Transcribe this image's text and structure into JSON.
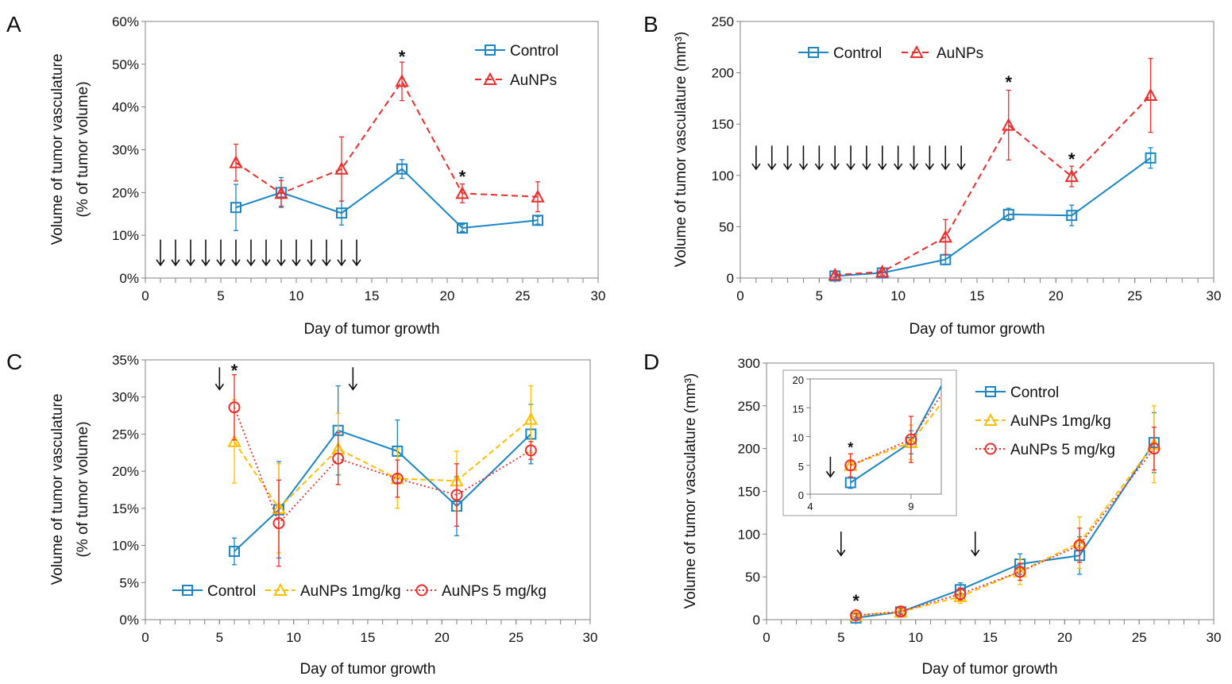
{
  "colors": {
    "control": "#1b86c3",
    "aunps": "#ee2b2b",
    "aunps_1mg": "#ffbe00",
    "aunps_5mg": "#ee2b2b",
    "axis": "#808080",
    "text": "#111111"
  },
  "chart_data": [
    {
      "panel": "A",
      "type": "line",
      "title": "",
      "xlabel": "Day of tumor growth",
      "ylabel": "Volume of tumor vasculature",
      "ylabel2": "(% of tumor volume)",
      "xlim": [
        0,
        30
      ],
      "ylim": [
        0,
        60
      ],
      "x_ticks": [
        0,
        5,
        10,
        15,
        20,
        25,
        30
      ],
      "y_ticks": [
        0,
        10,
        20,
        30,
        40,
        50,
        60
      ],
      "y_tick_labels": [
        "0%",
        "10%",
        "20%",
        "30%",
        "40%",
        "50%",
        "60%"
      ],
      "legend_position": "top-right",
      "series": [
        {
          "name": "Control",
          "style": "control",
          "marker": "square",
          "dash": false,
          "x": [
            6,
            9,
            13,
            17,
            21,
            26
          ],
          "y": [
            16.5,
            20,
            15.2,
            25.5,
            11.7,
            13.5
          ],
          "err": [
            5.4,
            3.5,
            2.8,
            2.2,
            0.8,
            0.9
          ]
        },
        {
          "name": "AuNPs",
          "style": "aunps",
          "marker": "triangle",
          "dash": true,
          "x": [
            6,
            9,
            13,
            17,
            21,
            26
          ],
          "y": [
            27,
            19.8,
            25.5,
            46,
            19.8,
            19
          ],
          "err": [
            4.3,
            3,
            7.5,
            4.5,
            2.2,
            3.5
          ]
        }
      ],
      "annotations": [
        {
          "text": "*",
          "x": 17,
          "y": 52
        },
        {
          "text": "*",
          "x": 21,
          "y": 24
        }
      ],
      "arrows": {
        "x": [
          1,
          2,
          3,
          4,
          5,
          6,
          7,
          8,
          9,
          10,
          11,
          12,
          13,
          14
        ],
        "y_top": 9,
        "y_bottom": 3
      }
    },
    {
      "panel": "B",
      "type": "line",
      "title": "",
      "xlabel": "Day of tumor growth",
      "ylabel": "Volume of tumor vasculature (mm³)",
      "xlim": [
        0,
        30
      ],
      "ylim": [
        0,
        250
      ],
      "x_ticks": [
        0,
        5,
        10,
        15,
        20,
        25,
        30
      ],
      "y_ticks": [
        0,
        50,
        100,
        150,
        200,
        250
      ],
      "y_tick_labels": [
        "0",
        "50",
        "100",
        "150",
        "200",
        "250"
      ],
      "legend_position": "top-left",
      "series": [
        {
          "name": "Control",
          "style": "control",
          "marker": "square",
          "dash": false,
          "x": [
            6,
            9,
            13,
            17,
            21,
            26
          ],
          "y": [
            2,
            5,
            18,
            62,
            61,
            117
          ],
          "err": [
            2,
            2,
            5,
            6,
            10,
            10
          ]
        },
        {
          "name": "AuNPs",
          "style": "aunps",
          "marker": "triangle",
          "dash": true,
          "x": [
            6,
            9,
            13,
            17,
            21,
            26
          ],
          "y": [
            3,
            6,
            40,
            149,
            99,
            178
          ],
          "err": [
            2,
            3,
            17,
            34,
            10,
            36
          ]
        }
      ],
      "annotations": [
        {
          "text": "*",
          "x": 17,
          "y": 192
        },
        {
          "text": "*",
          "x": 21,
          "y": 117
        }
      ],
      "arrows": {
        "x": [
          1,
          2,
          3,
          4,
          5,
          6,
          7,
          8,
          9,
          10,
          11,
          12,
          13,
          14
        ],
        "y_top": 129,
        "y_bottom": 106
      }
    },
    {
      "panel": "C",
      "type": "line",
      "title": "",
      "xlabel": "Day of tumor growth",
      "ylabel": "Volume of tumor vasculature",
      "ylabel2": "(% of tumor volume)",
      "xlim": [
        0,
        30
      ],
      "ylim": [
        0,
        35
      ],
      "x_ticks": [
        0,
        5,
        10,
        15,
        20,
        25,
        30
      ],
      "y_ticks": [
        0,
        5,
        10,
        15,
        20,
        25,
        30,
        35
      ],
      "y_tick_labels": [
        "0%",
        "5%",
        "10%",
        "15%",
        "20%",
        "25%",
        "30%",
        "35%"
      ],
      "legend_position": "bottom",
      "series": [
        {
          "name": "Control",
          "style": "control",
          "marker": "square",
          "dash": false,
          "x": [
            6,
            9,
            13,
            17,
            21,
            26
          ],
          "y": [
            9.2,
            14.8,
            25.5,
            22.7,
            15.3,
            25
          ],
          "err": [
            1.8,
            6.5,
            6,
            4.2,
            4,
            4
          ]
        },
        {
          "name": "AuNPs 1mg/kg",
          "style": "aunps_1mg",
          "marker": "triangle",
          "dash": true,
          "x": [
            6,
            9,
            13,
            17,
            21,
            26
          ],
          "y": [
            24,
            15,
            23,
            19,
            18.7,
            27
          ],
          "err": [
            5.6,
            6,
            4.8,
            4,
            4,
            4.5
          ]
        },
        {
          "name": "AuNPs 5 mg/kg",
          "style": "aunps_5mg",
          "marker": "circle",
          "dash": "dot",
          "x": [
            6,
            9,
            13,
            17,
            21,
            26
          ],
          "y": [
            28.6,
            13,
            21.7,
            19,
            16.8,
            22.8
          ],
          "err": [
            4.4,
            5.8,
            3.5,
            2.5,
            4.2,
            1.2
          ]
        }
      ],
      "annotations": [
        {
          "text": "*",
          "x": 6,
          "y": 33.7
        }
      ],
      "arrows": {
        "x": [
          5,
          14
        ],
        "y_top": 34,
        "y_bottom": 31
      }
    },
    {
      "panel": "D",
      "type": "line",
      "title": "",
      "xlabel": "Day of tumor growth",
      "ylabel": "Volume of tumor vasculature (mm³)",
      "xlim": [
        0,
        30
      ],
      "ylim": [
        0,
        300
      ],
      "x_ticks": [
        0,
        5,
        10,
        15,
        20,
        25,
        30
      ],
      "y_ticks": [
        0,
        50,
        100,
        150,
        200,
        250,
        300
      ],
      "y_tick_labels": [
        "0",
        "50",
        "100",
        "150",
        "200",
        "250",
        "300"
      ],
      "legend_position": "top-right",
      "series": [
        {
          "name": "Control",
          "style": "control",
          "marker": "square",
          "dash": false,
          "x": [
            6,
            9,
            13,
            17,
            21,
            26
          ],
          "y": [
            2,
            9,
            35,
            65,
            75,
            207
          ],
          "err": [
            1,
            2,
            8,
            12,
            22,
            35
          ]
        },
        {
          "name": "AuNPs 1mg/kg",
          "style": "aunps_1mg",
          "marker": "triangle",
          "dash": true,
          "x": [
            6,
            9,
            13,
            17,
            21,
            26
          ],
          "y": [
            5,
            9,
            27,
            56,
            90,
            205
          ],
          "err": [
            2,
            3,
            8,
            15,
            30,
            45
          ]
        },
        {
          "name": "AuNPs 5 mg/kg",
          "style": "aunps_5mg",
          "marker": "circle",
          "dash": "dot",
          "x": [
            6,
            9,
            13,
            17,
            21,
            26
          ],
          "y": [
            5,
            9.5,
            30,
            56,
            87,
            200
          ],
          "err": [
            2,
            4,
            7,
            10,
            20,
            25
          ]
        }
      ],
      "annotations": [
        {
          "text": "*",
          "x": 6,
          "y": 23
        }
      ],
      "arrows": {
        "x": [
          5,
          14
        ],
        "y_top": 103,
        "y_bottom": 75
      },
      "inset": {
        "xlim": [
          4,
          10.5
        ],
        "ylim": [
          0,
          20
        ],
        "x_ticks": [
          4,
          9
        ],
        "y_ticks": [
          0,
          5,
          10,
          15,
          20
        ],
        "y_tick_labels": [
          "0",
          "5",
          "10",
          "15",
          "20"
        ],
        "annotations": [
          {
            "text": "*",
            "x": 6,
            "y": 8.5
          }
        ],
        "arrows": {
          "x": [
            5
          ],
          "y_top": 6.5,
          "y_bottom": 3
        }
      }
    }
  ]
}
